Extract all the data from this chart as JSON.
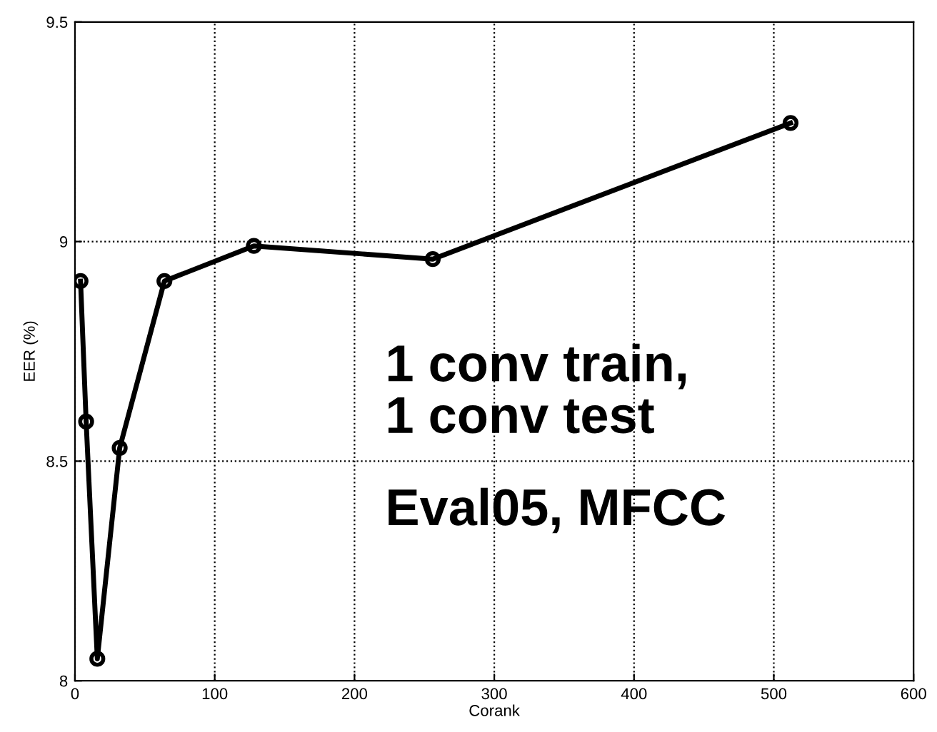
{
  "chart_data": {
    "type": "line",
    "xlabel": "Corank",
    "ylabel": "EER (%)",
    "x": [
      4,
      8,
      16,
      32,
      64,
      128,
      256,
      512
    ],
    "series": [
      {
        "color": "#000000",
        "values": [
          8.91,
          8.59,
          8.05,
          8.53,
          8.91,
          8.99,
          8.96,
          9.27
        ]
      }
    ],
    "xlim": [
      0,
      600
    ],
    "xticks": [
      0,
      100,
      200,
      300,
      400,
      500,
      600
    ],
    "ylim": [
      8,
      9.5
    ],
    "yticks": [
      8,
      8.5,
      9,
      9.5
    ],
    "grid": true,
    "marker": "circle",
    "line_style": "solid",
    "annotations": [
      "1 conv train,\n1 conv test",
      "Eval05, MFCC"
    ]
  }
}
